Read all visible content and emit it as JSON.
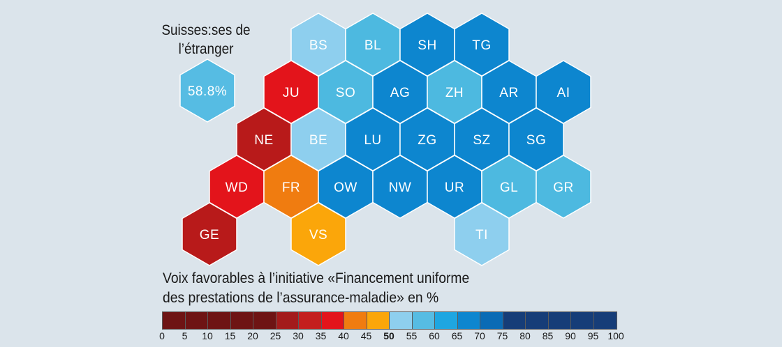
{
  "abroad": {
    "title_line1": "Suisses:ses de",
    "title_line2": "l’étranger",
    "value": "58.8%",
    "color": "#56bce3"
  },
  "cantons": [
    {
      "code": "BS",
      "color": "#8ecfee"
    },
    {
      "code": "BL",
      "color": "#4db9e0"
    },
    {
      "code": "SH",
      "color": "#0d86cf"
    },
    {
      "code": "TG",
      "color": "#0d86cf"
    },
    {
      "code": "JU",
      "color": "#e3141b"
    },
    {
      "code": "SO",
      "color": "#4db9e0"
    },
    {
      "code": "AG",
      "color": "#0d86cf"
    },
    {
      "code": "ZH",
      "color": "#4db9e0"
    },
    {
      "code": "AR",
      "color": "#0d86cf"
    },
    {
      "code": "AI",
      "color": "#0d86cf"
    },
    {
      "code": "NE",
      "color": "#b81a1a"
    },
    {
      "code": "BE",
      "color": "#8ecfee"
    },
    {
      "code": "LU",
      "color": "#0d86cf"
    },
    {
      "code": "ZG",
      "color": "#0d86cf"
    },
    {
      "code": "SZ",
      "color": "#0d86cf"
    },
    {
      "code": "SG",
      "color": "#0d86cf"
    },
    {
      "code": "WD",
      "color": "#e3141b"
    },
    {
      "code": "FR",
      "color": "#f07c10"
    },
    {
      "code": "OW",
      "color": "#0d86cf"
    },
    {
      "code": "NW",
      "color": "#0d86cf"
    },
    {
      "code": "UR",
      "color": "#0d86cf"
    },
    {
      "code": "GL",
      "color": "#4db9e0"
    },
    {
      "code": "GR",
      "color": "#4db9e0"
    },
    {
      "code": "GE",
      "color": "#b81a1a"
    },
    {
      "code": "VS",
      "color": "#fba60a"
    },
    {
      "code": "TI",
      "color": "#8ecfee"
    }
  ],
  "legend": {
    "title_line1": "Voix favorables à l’initiative «Financement uniforme",
    "title_line2": "des prestations de l’assurance-maladie» en %",
    "colors": [
      "#6e1414",
      "#6e1414",
      "#6e1414",
      "#6e1414",
      "#6e1414",
      "#a31b1b",
      "#c41e1e",
      "#e3141b",
      "#f07c10",
      "#fba60a",
      "#8ecfee",
      "#56bce3",
      "#1ea6e1",
      "#0d86cf",
      "#0a6bb5",
      "#163d78",
      "#163d78",
      "#163d78",
      "#163d78",
      "#163d78"
    ],
    "ticks": [
      "0",
      "5",
      "10",
      "15",
      "20",
      "25",
      "30",
      "35",
      "40",
      "45",
      "50",
      "55",
      "60",
      "65",
      "70",
      "75",
      "80",
      "85",
      "90",
      "95",
      "100"
    ],
    "bold_tick": "50"
  }
}
